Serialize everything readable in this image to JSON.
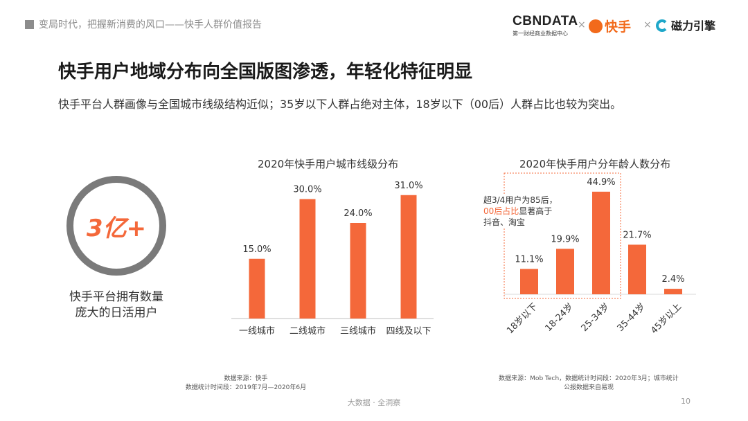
{
  "header": {
    "title": "变局时代，把握新消费的风口——快手人群价值报告",
    "logos": {
      "cbndata": "CBNDATA",
      "cbndata_sub": "第一财经商业数据中心",
      "kuaishou": "快手",
      "cili": "磁力引擎",
      "separator": "×"
    }
  },
  "main_title": "快手用户地域分布向全国版图渗透，年轻化特征明显",
  "subtitle": "快手平台人群画像与全国城市线级结构近似；35岁以下人群占绝对主体，18岁以下（00后）人群占比也较为突出。",
  "stat": {
    "value": "3亿+",
    "caption_line1": "快手平台拥有数量",
    "caption_line2": "庞大的日活用户"
  },
  "colors": {
    "bar": "#f4683a",
    "accent": "#f4683a",
    "ring": "#7a7a7a"
  },
  "chart_data": [
    {
      "type": "bar",
      "title": "2020年快手用户城市线级分布",
      "categories": [
        "一线城市",
        "二线城市",
        "三线城市",
        "四线及以下"
      ],
      "values": [
        15.0,
        30.0,
        24.0,
        31.0
      ],
      "labels": [
        "15.0%",
        "30.0%",
        "24.0%",
        "31.0%"
      ],
      "unit": "%",
      "source": "数据来源：快手",
      "period": "数据统计时间段：2019年7月—2020年6月"
    },
    {
      "type": "bar",
      "title": "2020年快手用户分年龄人数分布",
      "categories": [
        "18岁以下",
        "18-24岁",
        "25-34岁",
        "35-44岁",
        "45岁以上"
      ],
      "values": [
        11.1,
        19.9,
        44.9,
        21.7,
        2.4
      ],
      "labels": [
        "11.1%",
        "19.9%",
        "44.9%",
        "21.7%",
        "2.4%"
      ],
      "unit": "%",
      "annotation": {
        "line1": "超3/4用户为85后，",
        "highlight": "00后占比",
        "line2_rest": "显著高于",
        "line3": "抖音、淘宝"
      },
      "source": "数据来源：Mob Tech，数据统计时间段：2020年3月；城市统计",
      "source2": "公报数据来自易观"
    }
  ],
  "footer": {
    "center": "大数据 · 全洞察",
    "page": "10"
  }
}
